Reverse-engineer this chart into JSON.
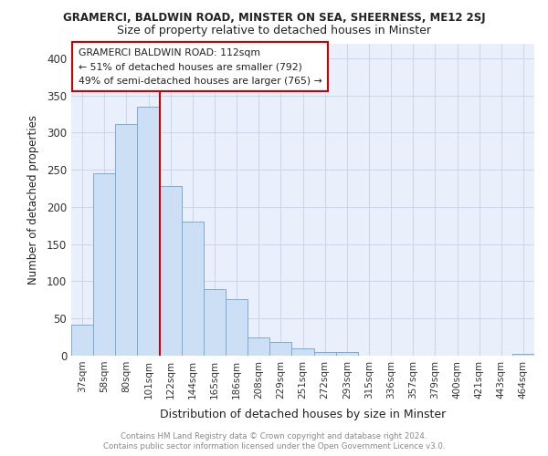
{
  "title_top": "GRAMERCI, BALDWIN ROAD, MINSTER ON SEA, SHEERNESS, ME12 2SJ",
  "title_main": "Size of property relative to detached houses in Minster",
  "xlabel": "Distribution of detached houses by size in Minster",
  "ylabel": "Number of detached properties",
  "categories": [
    "37sqm",
    "58sqm",
    "80sqm",
    "101sqm",
    "122sqm",
    "144sqm",
    "165sqm",
    "186sqm",
    "208sqm",
    "229sqm",
    "251sqm",
    "272sqm",
    "293sqm",
    "315sqm",
    "336sqm",
    "357sqm",
    "379sqm",
    "400sqm",
    "421sqm",
    "443sqm",
    "464sqm"
  ],
  "values": [
    42,
    245,
    312,
    335,
    228,
    180,
    90,
    76,
    25,
    18,
    10,
    5,
    5,
    0,
    0,
    0,
    0,
    0,
    0,
    0,
    3
  ],
  "bar_color": "#ccdff5",
  "bar_edge_color": "#7aadd4",
  "vline_x": 3.5,
  "vline_color": "#cc0000",
  "annotation_lines": [
    "GRAMERCI BALDWIN ROAD: 112sqm",
    "← 51% of detached houses are smaller (792)",
    "49% of semi-detached houses are larger (765) →"
  ],
  "annotation_box_color": "#cc0000",
  "ylim": [
    0,
    420
  ],
  "yticks": [
    0,
    50,
    100,
    150,
    200,
    250,
    300,
    350,
    400
  ],
  "footer_text": "Contains HM Land Registry data © Crown copyright and database right 2024.\nContains public sector information licensed under the Open Government Licence v3.0.",
  "background_color": "#eaf0fb",
  "grid_color": "#c8d8ee"
}
